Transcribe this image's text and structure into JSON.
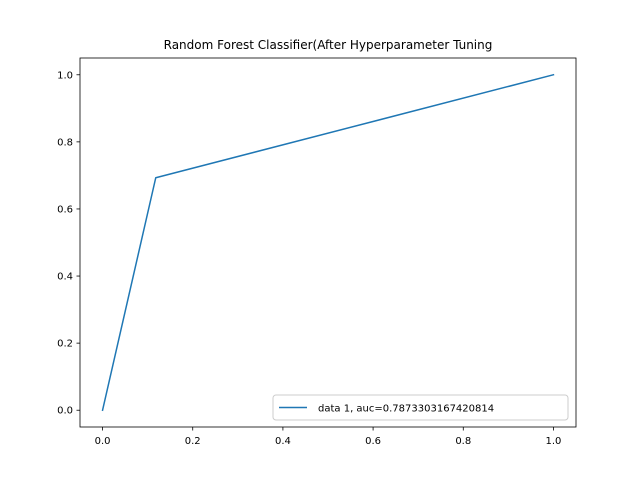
{
  "chart_data": {
    "type": "line",
    "title": "Random Forest Classifier(After Hyperparameter Tuning",
    "xlabel": "",
    "ylabel": "",
    "xlim": [
      -0.05,
      1.05
    ],
    "ylim": [
      -0.05,
      1.05
    ],
    "grid": false,
    "xticks": [
      0.0,
      0.2,
      0.4,
      0.6,
      0.8,
      1.0
    ],
    "xtick_labels": [
      "0.0",
      "0.2",
      "0.4",
      "0.6",
      "0.8",
      "1.0"
    ],
    "yticks": [
      0.0,
      0.2,
      0.4,
      0.6,
      0.8,
      1.0
    ],
    "ytick_labels": [
      "0.0",
      "0.2",
      "0.4",
      "0.6",
      "0.8",
      "1.0"
    ],
    "legend_position": "lower-right",
    "series": [
      {
        "name": "data 1, auc=0.7873303167420814",
        "color": "#1f77b4",
        "x": [
          0.0,
          0.118,
          1.0
        ],
        "y": [
          0.0,
          0.693,
          1.0
        ]
      }
    ]
  }
}
